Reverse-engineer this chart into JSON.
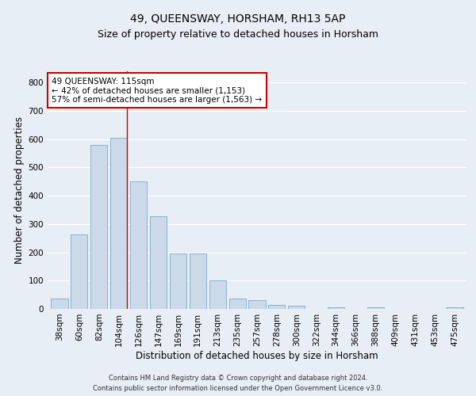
{
  "title": "49, QUEENSWAY, HORSHAM, RH13 5AP",
  "subtitle": "Size of property relative to detached houses in Horsham",
  "xlabel": "Distribution of detached houses by size in Horsham",
  "ylabel": "Number of detached properties",
  "categories": [
    "38sqm",
    "60sqm",
    "82sqm",
    "104sqm",
    "126sqm",
    "147sqm",
    "169sqm",
    "191sqm",
    "213sqm",
    "235sqm",
    "257sqm",
    "278sqm",
    "300sqm",
    "322sqm",
    "344sqm",
    "366sqm",
    "388sqm",
    "409sqm",
    "431sqm",
    "453sqm",
    "475sqm"
  ],
  "values": [
    37,
    262,
    580,
    605,
    450,
    328,
    195,
    195,
    100,
    37,
    30,
    15,
    10,
    0,
    7,
    0,
    7,
    0,
    0,
    0,
    7
  ],
  "bar_color": "#ccd9e8",
  "bar_edge_color": "#7aaac8",
  "property_line_x": 3.42,
  "property_sqm": 115,
  "annotation_text": "49 QUEENSWAY: 115sqm\n← 42% of detached houses are smaller (1,153)\n57% of semi-detached houses are larger (1,563) →",
  "ylim": [
    0,
    840
  ],
  "yticks": [
    0,
    100,
    200,
    300,
    400,
    500,
    600,
    700,
    800
  ],
  "footer_line1": "Contains HM Land Registry data © Crown copyright and database right 2024.",
  "footer_line2": "Contains public sector information licensed under the Open Government Licence v3.0.",
  "background_color": "#e8eef5",
  "plot_bg_color": "#e8eef5",
  "grid_color": "white",
  "annotation_box_color": "white",
  "annotation_box_edge": "#cc0000",
  "title_fontsize": 10,
  "subtitle_fontsize": 9,
  "axis_label_fontsize": 8.5,
  "tick_fontsize": 7.5,
  "annotation_fontsize": 7.5,
  "footer_fontsize": 6.0
}
